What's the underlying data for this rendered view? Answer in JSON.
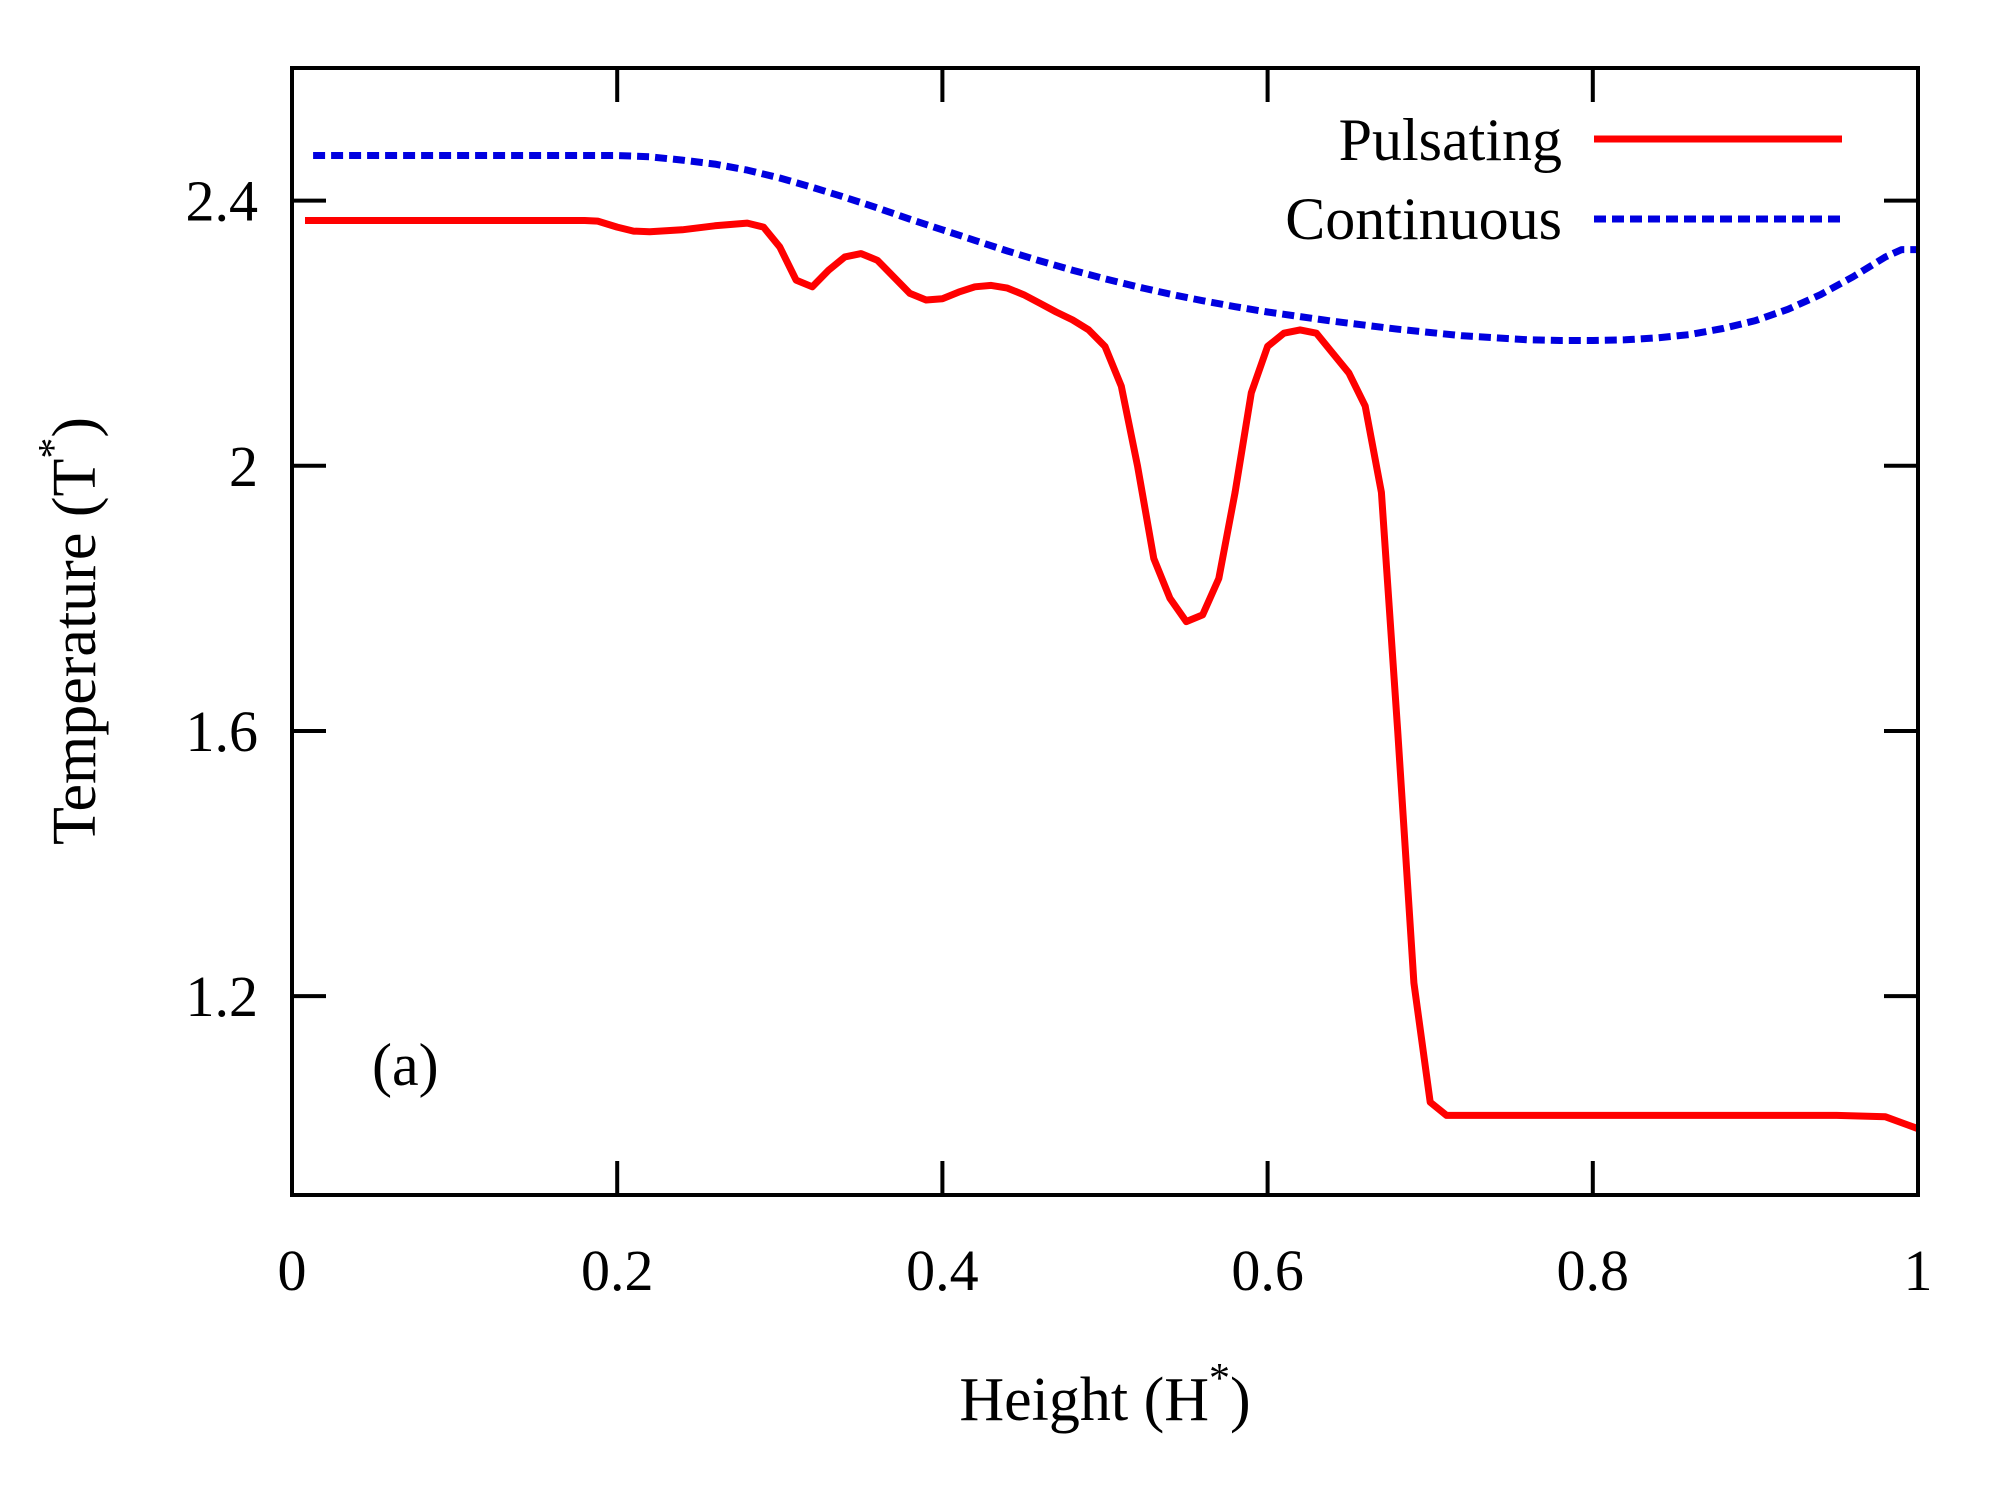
{
  "chart_data": {
    "type": "line",
    "xlabel": "Height (H",
    "xlabel_sup": "*",
    "xlabel_end": ")",
    "ylabel": "Temperature (T",
    "ylabel_sup": "*",
    "ylabel_end": ")",
    "xlim": [
      0,
      1
    ],
    "ylim": [
      0.9,
      2.6
    ],
    "x_ticks": [
      0,
      0.2,
      0.4,
      0.6,
      0.8,
      1
    ],
    "x_tick_labels": [
      "0",
      "0.2",
      "0.4",
      "0.6",
      "0.8",
      "1"
    ],
    "y_ticks": [
      1.2,
      1.6,
      2.0,
      2.4
    ],
    "y_tick_labels": [
      "1.2",
      "1.6",
      "2",
      "2.4"
    ],
    "grid": false,
    "legend_position": "top-right",
    "annotation": "(a)",
    "series": [
      {
        "name": "Pulsating",
        "color": "#ff0000",
        "style": "solid",
        "x": [
          0.008,
          0.05,
          0.1,
          0.15,
          0.18,
          0.188,
          0.2,
          0.21,
          0.22,
          0.24,
          0.26,
          0.28,
          0.29,
          0.3,
          0.31,
          0.32,
          0.33,
          0.34,
          0.35,
          0.36,
          0.37,
          0.38,
          0.39,
          0.4,
          0.41,
          0.42,
          0.43,
          0.44,
          0.45,
          0.46,
          0.47,
          0.48,
          0.49,
          0.5,
          0.51,
          0.52,
          0.53,
          0.54,
          0.55,
          0.56,
          0.57,
          0.58,
          0.59,
          0.6,
          0.61,
          0.62,
          0.63,
          0.64,
          0.65,
          0.66,
          0.67,
          0.68,
          0.69,
          0.7,
          0.71,
          0.72,
          0.73,
          0.75,
          0.8,
          0.85,
          0.9,
          0.95,
          0.98,
          1.0
        ],
        "values": [
          2.37,
          2.37,
          2.37,
          2.37,
          2.37,
          2.369,
          2.36,
          2.354,
          2.353,
          2.356,
          2.362,
          2.366,
          2.36,
          2.33,
          2.28,
          2.27,
          2.295,
          2.315,
          2.32,
          2.31,
          2.285,
          2.26,
          2.25,
          2.252,
          2.262,
          2.27,
          2.272,
          2.268,
          2.258,
          2.245,
          2.232,
          2.22,
          2.205,
          2.18,
          2.12,
          2.0,
          1.86,
          1.8,
          1.765,
          1.775,
          1.83,
          1.96,
          2.11,
          2.18,
          2.2,
          2.205,
          2.2,
          2.17,
          2.14,
          2.09,
          1.96,
          1.6,
          1.22,
          1.04,
          1.02,
          1.02,
          1.02,
          1.02,
          1.02,
          1.02,
          1.02,
          1.02,
          1.018,
          1.0
        ]
      },
      {
        "name": "Continuous",
        "color": "#0000e0",
        "style": "dashed",
        "x": [
          0.013,
          0.05,
          0.1,
          0.15,
          0.2,
          0.22,
          0.24,
          0.26,
          0.28,
          0.3,
          0.32,
          0.34,
          0.36,
          0.38,
          0.4,
          0.42,
          0.44,
          0.46,
          0.48,
          0.5,
          0.52,
          0.54,
          0.56,
          0.58,
          0.6,
          0.62,
          0.64,
          0.66,
          0.68,
          0.7,
          0.72,
          0.74,
          0.76,
          0.78,
          0.8,
          0.82,
          0.84,
          0.86,
          0.88,
          0.9,
          0.92,
          0.94,
          0.96,
          0.98,
          0.99,
          1.0
        ],
        "values": [
          2.468,
          2.468,
          2.468,
          2.468,
          2.468,
          2.466,
          2.461,
          2.455,
          2.446,
          2.434,
          2.42,
          2.405,
          2.389,
          2.372,
          2.356,
          2.34,
          2.324,
          2.309,
          2.295,
          2.282,
          2.27,
          2.259,
          2.249,
          2.24,
          2.232,
          2.225,
          2.218,
          2.212,
          2.206,
          2.201,
          2.196,
          2.193,
          2.19,
          2.189,
          2.189,
          2.19,
          2.193,
          2.198,
          2.207,
          2.219,
          2.236,
          2.258,
          2.285,
          2.315,
          2.326,
          2.326
        ]
      }
    ]
  }
}
